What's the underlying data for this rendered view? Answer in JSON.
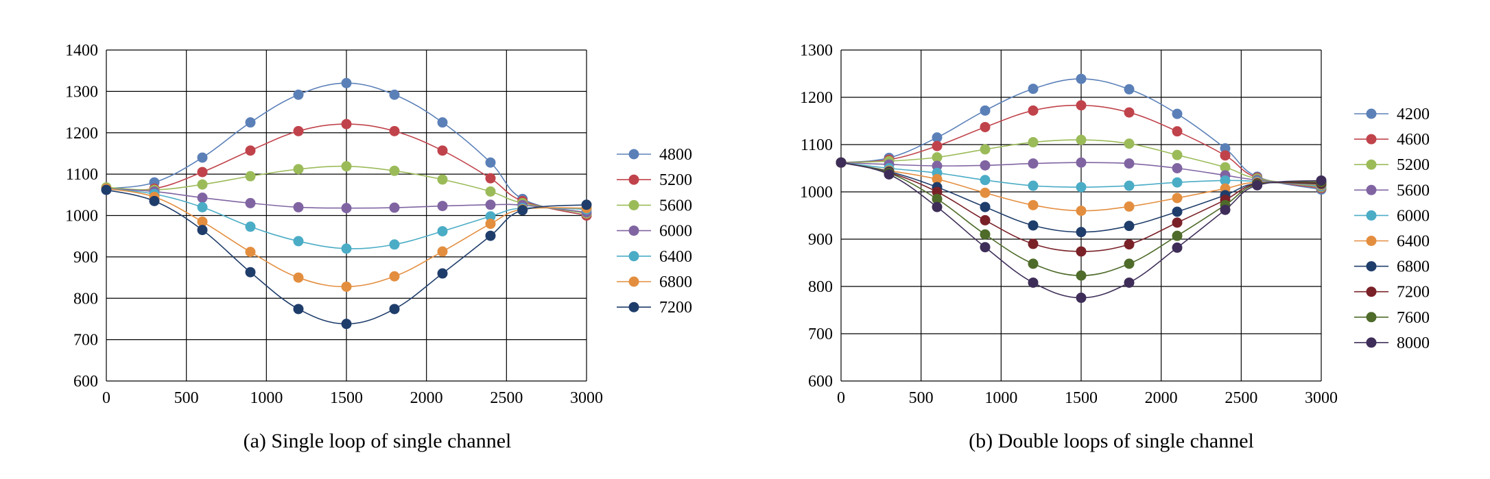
{
  "chart_data": [
    {
      "type": "line",
      "caption": "(a) Single loop of single channel",
      "xlim": [
        0,
        3000
      ],
      "ylim": [
        600,
        1400
      ],
      "xticks": [
        0,
        500,
        1000,
        1500,
        2000,
        2500,
        3000
      ],
      "yticks": [
        600,
        700,
        800,
        900,
        1000,
        1100,
        1200,
        1300,
        1400
      ],
      "grid": true,
      "legend_position": "right",
      "x": [
        0,
        300,
        600,
        900,
        1200,
        1500,
        1800,
        2100,
        2400,
        2600,
        3000
      ],
      "series": [
        {
          "name": "4800",
          "color": "#5b80b8",
          "values": [
            1065,
            1080,
            1140,
            1225,
            1292,
            1320,
            1292,
            1225,
            1128,
            1040,
            1000
          ]
        },
        {
          "name": "5200",
          "color": "#c0434b",
          "values": [
            1065,
            1065,
            1105,
            1157,
            1204,
            1221,
            1204,
            1157,
            1090,
            1035,
            1000
          ]
        },
        {
          "name": "5600",
          "color": "#9bbb59",
          "values": [
            1068,
            1062,
            1075,
            1095,
            1112,
            1119,
            1108,
            1087,
            1058,
            1030,
            1005
          ]
        },
        {
          "name": "6000",
          "color": "#8064a2",
          "values": [
            1065,
            1058,
            1043,
            1030,
            1020,
            1018,
            1019,
            1023,
            1026,
            1025,
            1008
          ]
        },
        {
          "name": "6400",
          "color": "#4bacc6",
          "values": [
            1065,
            1052,
            1020,
            973,
            938,
            920,
            930,
            962,
            998,
            1018,
            1015
          ]
        },
        {
          "name": "6800",
          "color": "#e38e3f",
          "values": [
            1065,
            1045,
            985,
            912,
            850,
            828,
            853,
            913,
            980,
            1015,
            1018
          ]
        },
        {
          "name": "7200",
          "color": "#1f3d6b",
          "values": [
            1062,
            1035,
            965,
            863,
            774,
            738,
            774,
            860,
            951,
            1013,
            1026
          ]
        }
      ]
    },
    {
      "type": "line",
      "caption": "(b) Double loops of single channel",
      "xlim": [
        0,
        3000
      ],
      "ylim": [
        600,
        1300
      ],
      "xticks": [
        0,
        500,
        1000,
        1500,
        2000,
        2500,
        3000
      ],
      "yticks": [
        600,
        700,
        800,
        900,
        1000,
        1100,
        1200,
        1300
      ],
      "grid": true,
      "legend_position": "right",
      "x": [
        0,
        300,
        600,
        900,
        1200,
        1500,
        1800,
        2100,
        2400,
        2600,
        3000
      ],
      "series": [
        {
          "name": "4200",
          "color": "#5b80b8",
          "values": [
            1062,
            1072,
            1115,
            1172,
            1218,
            1239,
            1217,
            1165,
            1092,
            1032,
            1005
          ]
        },
        {
          "name": "4600",
          "color": "#c0434b",
          "values": [
            1062,
            1068,
            1097,
            1137,
            1172,
            1183,
            1168,
            1128,
            1077,
            1030,
            1008
          ]
        },
        {
          "name": "5200",
          "color": "#9bbb59",
          "values": [
            1062,
            1065,
            1073,
            1090,
            1105,
            1110,
            1102,
            1078,
            1052,
            1028,
            1010
          ]
        },
        {
          "name": "5600",
          "color": "#8064a2",
          "values": [
            1062,
            1058,
            1055,
            1056,
            1060,
            1062,
            1060,
            1050,
            1035,
            1025,
            1012
          ]
        },
        {
          "name": "6000",
          "color": "#4bacc6",
          "values": [
            1062,
            1050,
            1040,
            1025,
            1013,
            1010,
            1013,
            1020,
            1024,
            1022,
            1013
          ]
        },
        {
          "name": "6400",
          "color": "#e38e3f",
          "values": [
            1062,
            1045,
            1027,
            998,
            972,
            960,
            969,
            987,
            1007,
            1020,
            1015
          ]
        },
        {
          "name": "6800",
          "color": "#1f3d6b",
          "values": [
            1062,
            1043,
            1010,
            968,
            929,
            915,
            928,
            958,
            993,
            1018,
            1017
          ]
        },
        {
          "name": "7200",
          "color": "#7a2128",
          "values": [
            1062,
            1041,
            1000,
            940,
            890,
            874,
            889,
            935,
            983,
            1017,
            1019
          ]
        },
        {
          "name": "7600",
          "color": "#4e6b2a",
          "values": [
            1062,
            1040,
            985,
            910,
            848,
            823,
            848,
            907,
            972,
            1016,
            1021
          ]
        },
        {
          "name": "8000",
          "color": "#3e2d58",
          "values": [
            1062,
            1037,
            968,
            883,
            808,
            776,
            808,
            882,
            962,
            1014,
            1024
          ]
        }
      ]
    }
  ]
}
